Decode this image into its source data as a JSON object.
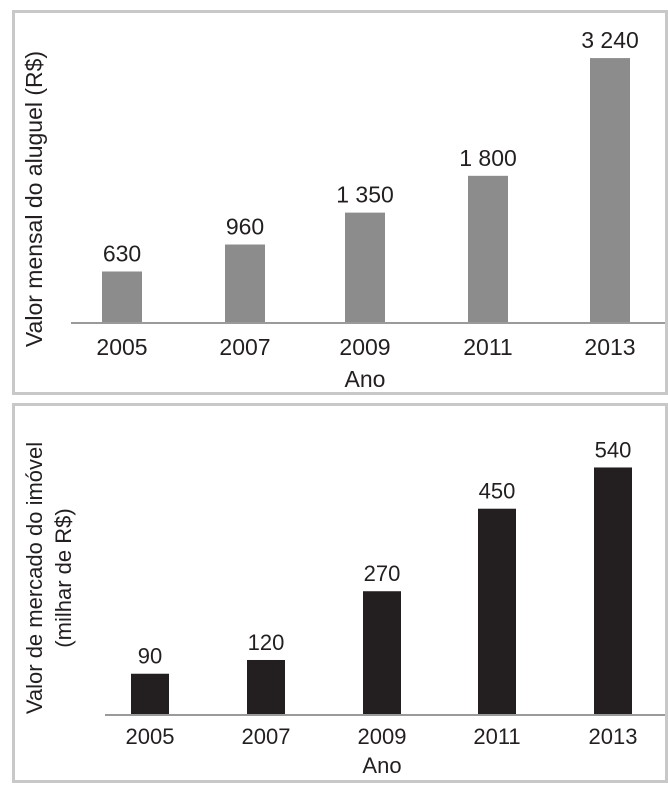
{
  "chart_data": [
    {
      "type": "bar",
      "categories": [
        "2005",
        "2007",
        "2009",
        "2011",
        "2013"
      ],
      "values": [
        630,
        960,
        1350,
        1800,
        3240
      ],
      "value_labels": [
        "630",
        "960",
        "1 350",
        "1 800",
        "3 240"
      ],
      "title": "",
      "xlabel": "Ano",
      "ylabel": "Valor mensal do aluguel (R$)",
      "ylim": [
        0,
        3400
      ],
      "bar_color": "#8c8c8c",
      "grid": false,
      "legend": "none"
    },
    {
      "type": "bar",
      "categories": [
        "2005",
        "2007",
        "2009",
        "2011",
        "2013"
      ],
      "values": [
        90,
        120,
        270,
        450,
        540
      ],
      "value_labels": [
        "90",
        "120",
        "270",
        "450",
        "540"
      ],
      "title": "",
      "xlabel": "Ano",
      "ylabel": [
        "Valor de mercado do imóvel",
        "(milhar de R$)"
      ],
      "ylim": [
        0,
        565
      ],
      "bar_color": "#231f20",
      "grid": false,
      "legend": "none"
    }
  ]
}
